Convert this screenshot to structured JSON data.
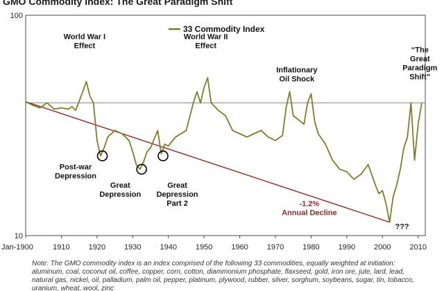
{
  "title": "GMO Commodity Index:  The Great Paradigm Shift",
  "note": "Note: The GMO commodity index is an index comprised of the following 33 commodities, equally weighted at initiation: aluminum, coal, coconut oil, coffee, copper, corn, cotton, diammonium phosphate, flaxseed, gold, iron ore, jute, lard, lead, natural gas, nickel, oil, palladium, palm oil, pepper, platinum, plywood, rubber, silver, sorghum, soybeans, sugar, tin, tobacco, uranium, wheat, wool, zinc",
  "chart_data": {
    "type": "line",
    "title": "GMO Commodity Index:  The Great Paradigm Shift",
    "y_scale": "log",
    "ylim": [
      10,
      100
    ],
    "y_ticks": [
      "100",
      "10"
    ],
    "xlim": [
      1900,
      2012
    ],
    "x_ticks": [
      {
        "value": 1900,
        "label": "Jan-1900"
      },
      {
        "value": 1910,
        "label": "1910"
      },
      {
        "value": 1920,
        "label": "1920"
      },
      {
        "value": 1930,
        "label": "1930"
      },
      {
        "value": 1940,
        "label": "1940"
      },
      {
        "value": 1950,
        "label": "1950"
      },
      {
        "value": 1960,
        "label": "1960"
      },
      {
        "value": 1970,
        "label": "1970"
      },
      {
        "value": 1980,
        "label": "1980"
      },
      {
        "value": 1990,
        "label": "1990"
      },
      {
        "value": 2000,
        "label": "2000"
      },
      {
        "value": 2010,
        "label": "2010"
      }
    ],
    "legend": "top-center",
    "grid": false,
    "colors": {
      "index": "#7b7d2a",
      "trend": "#8b2a2a",
      "reference": "#888888",
      "highlight": "#000000"
    },
    "series": [
      {
        "name": "33 Commodity Index",
        "x": [
          1900,
          1902,
          1904,
          1906,
          1908,
          1910,
          1912,
          1913,
          1914,
          1916,
          1917,
          1918,
          1919,
          1920,
          1921,
          1922,
          1923,
          1925,
          1927,
          1929,
          1930,
          1931,
          1932,
          1933,
          1934,
          1935,
          1937,
          1938,
          1939,
          1940,
          1942,
          1945,
          1947,
          1948,
          1949,
          1950,
          1951,
          1952,
          1954,
          1956,
          1958,
          1960,
          1962,
          1964,
          1966,
          1968,
          1970,
          1972,
          1973,
          1974,
          1975,
          1976,
          1977,
          1978,
          1979,
          1980,
          1981,
          1982,
          1984,
          1986,
          1988,
          1990,
          1992,
          1994,
          1996,
          1998,
          1999,
          2000,
          2001,
          2002,
          2003,
          2004,
          2005,
          2006,
          2007,
          2008,
          2009,
          2010,
          2011
        ],
        "y": [
          40.5,
          39.0,
          38.0,
          40.0,
          37.5,
          38.0,
          37.5,
          38.5,
          37.0,
          45.0,
          50.0,
          43.0,
          40.0,
          27.0,
          23.0,
          25.0,
          28.0,
          30.0,
          29.0,
          27.0,
          24.0,
          21.0,
          20.0,
          21.5,
          24.0,
          25.0,
          30.0,
          23.5,
          26.0,
          25.5,
          28.0,
          30.0,
          40.0,
          45.0,
          40.0,
          47.0,
          52.0,
          40.0,
          37.0,
          35.0,
          30.0,
          29.0,
          28.0,
          29.0,
          30.0,
          28.0,
          27.0,
          28.5,
          38.0,
          45.0,
          35.0,
          34.0,
          33.0,
          32.0,
          40.0,
          44.0,
          33.0,
          29.0,
          26.0,
          22.0,
          20.0,
          19.5,
          18.0,
          19.0,
          21.0,
          17.0,
          15.5,
          16.0,
          14.0,
          11.5,
          15.0,
          17.0,
          20.0,
          25.0,
          28.0,
          40.0,
          22.0,
          32.0,
          40.0
        ]
      }
    ],
    "reference_line": {
      "y": 40
    },
    "trend_line": {
      "x": [
        1900,
        2002
      ],
      "y": [
        40.5,
        11.5
      ],
      "label": [
        "-1.2%",
        "Annual Decline"
      ]
    },
    "annotations": [
      {
        "lines": [
          "World War I",
          "Effect"
        ],
        "x": 1916.5,
        "y": 78
      },
      {
        "lines": [
          "World War II",
          "Effect"
        ],
        "x": 1950.5,
        "y": 78
      },
      {
        "lines": [
          "Inflationary",
          "Oil Shock"
        ],
        "x": 1976,
        "y": 55
      },
      {
        "lines": [
          "“The",
          "Great",
          "Paradigm",
          "Shift”"
        ],
        "x": 2010.5,
        "y": 68
      },
      {
        "lines": [
          "Post-war",
          "Depression"
        ],
        "x": 1914,
        "y": 20
      },
      {
        "lines": [
          "Great",
          "Depression"
        ],
        "x": 1926.5,
        "y": 16.5
      },
      {
        "lines": [
          "Great",
          "Depression",
          "Part 2"
        ],
        "x": 1942.5,
        "y": 16.5
      },
      {
        "lines": [
          "???"
        ],
        "x": 2005.5,
        "y": 10.7
      }
    ],
    "highlights": [
      {
        "x": 1921.5,
        "y": 23
      },
      {
        "x": 1932.5,
        "y": 20
      },
      {
        "x": 1938.5,
        "y": 23
      }
    ]
  }
}
